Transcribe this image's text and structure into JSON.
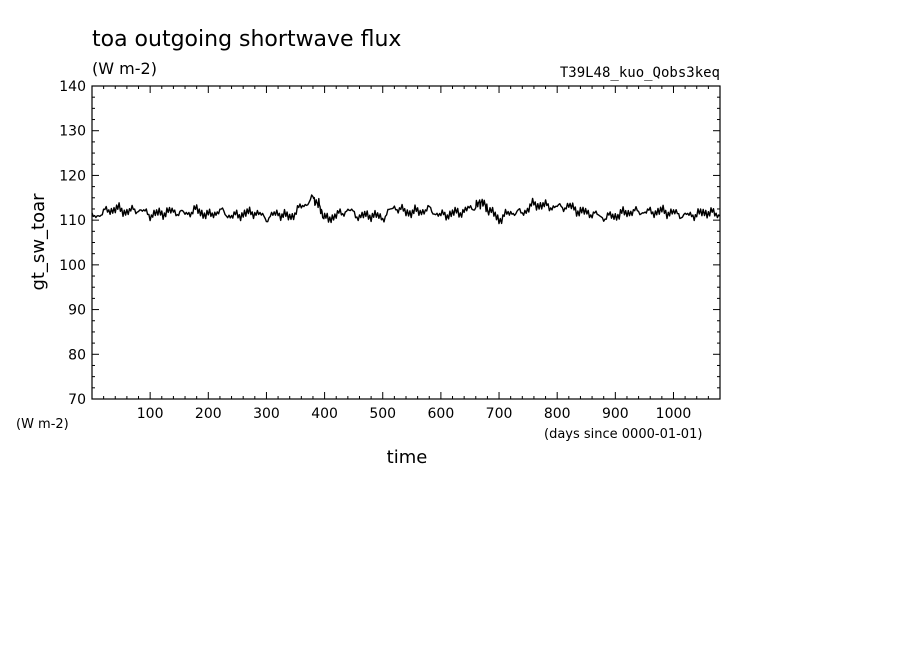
{
  "chart_data": {
    "type": "line",
    "title": "toa outgoing shortwave flux",
    "units": "(W m-2)",
    "run_label": "T39L48_kuo_Qobs3keq",
    "xlabel": "time",
    "x_units": "(days since 0000-01-01)",
    "ylabel": "gt_sw_toar",
    "y_units": "(W m-2)",
    "xlim": [
      0,
      1080
    ],
    "ylim": [
      70,
      140
    ],
    "x_ticks": [
      100,
      200,
      300,
      400,
      500,
      600,
      700,
      800,
      900,
      1000
    ],
    "x_tick_labels": [
      "100",
      "200",
      "300",
      "400",
      "500",
      "600",
      "700",
      "800",
      "900",
      "1000"
    ],
    "y_ticks": [
      70,
      80,
      90,
      100,
      110,
      120,
      130,
      140
    ],
    "y_tick_labels": [
      "70",
      "80",
      "90",
      "100",
      "110",
      "120",
      "130",
      "140"
    ],
    "grid": false,
    "series": [
      {
        "color": "#000000",
        "x": [
          0,
          20,
          40,
          60,
          80,
          100,
          120,
          140,
          160,
          180,
          200,
          220,
          240,
          260,
          280,
          300,
          320,
          340,
          360,
          380,
          390,
          400,
          420,
          440,
          460,
          480,
          500,
          520,
          540,
          560,
          580,
          600,
          620,
          640,
          660,
          670,
          680,
          700,
          720,
          740,
          760,
          780,
          800,
          820,
          840,
          860,
          880,
          900,
          920,
          940,
          960,
          980,
          1000,
          1020,
          1040,
          1060,
          1080
        ],
        "y": [
          110.5,
          111.8,
          112.6,
          111.9,
          112.4,
          111.2,
          111.6,
          112.0,
          111.4,
          112.3,
          111.0,
          112.1,
          110.8,
          111.4,
          111.8,
          110.4,
          111.6,
          110.6,
          113.0,
          114.8,
          113.5,
          110.2,
          111.0,
          112.3,
          110.8,
          111.2,
          110.5,
          113.0,
          111.8,
          111.9,
          112.4,
          111.0,
          111.5,
          112.0,
          113.2,
          114.2,
          112.6,
          110.2,
          111.8,
          111.6,
          113.6,
          113.2,
          112.9,
          113.1,
          111.9,
          111.5,
          110.6,
          111.0,
          111.8,
          111.9,
          111.8,
          112.0,
          111.6,
          111.0,
          111.3,
          111.9,
          110.9
        ]
      }
    ]
  }
}
